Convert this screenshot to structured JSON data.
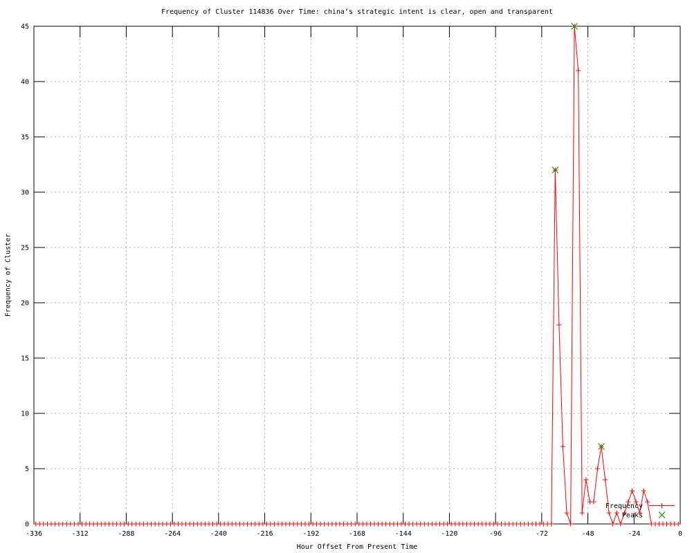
{
  "title": "Frequency of Cluster 114836 Over Time: china’s strategic intent is clear, open and transparent",
  "x_axis": {
    "label": "Hour Offset From Present Time",
    "min": -336,
    "max": 0,
    "ticks": [
      -336,
      -312,
      -288,
      -264,
      -240,
      -216,
      -192,
      -168,
      -144,
      -120,
      -96,
      -72,
      -48,
      -24,
      0
    ]
  },
  "y_axis": {
    "label": "Frequency of Cluster",
    "min": 0,
    "max": 45,
    "ticks": [
      0,
      5,
      10,
      15,
      20,
      25,
      30,
      35,
      40,
      45
    ]
  },
  "legend": {
    "position": "bottom-right",
    "entries": [
      {
        "label": "Frequency",
        "marker": "plus-line",
        "color": "#ff0000"
      },
      {
        "label": "Peaks",
        "marker": "x",
        "color": "#00a000"
      }
    ]
  },
  "colors": {
    "frequency_series": "#ff0000",
    "peaks_series": "#00a000",
    "grid": "#b0b0b0",
    "border": "#000000",
    "background": "#ffffff",
    "text": "#000000"
  },
  "chart_data": {
    "type": "line",
    "title": "Frequency of Cluster 114836 Over Time: china’s strategic intent is clear, open and transparent",
    "xlabel": "Hour Offset From Present Time",
    "ylabel": "Frequency of Cluster",
    "xlim": [
      -336,
      0
    ],
    "ylim": [
      0,
      45
    ],
    "grid": true,
    "series": [
      {
        "name": "Frequency",
        "type": "linespoints",
        "marker": "plus",
        "color": "#ff0000",
        "x_start": -335,
        "x_step": 2,
        "x_end": -1,
        "default_value": 0,
        "nonzero_points": {
          "-65": 32,
          "-63": 18,
          "-61": 7,
          "-59": 1,
          "-55": 45,
          "-53": 41,
          "-51": 1,
          "-49": 4,
          "-47": 2,
          "-45": 2,
          "-43": 5,
          "-41": 7,
          "-39": 4,
          "-37": 1,
          "-33": 1,
          "-29": 1,
          "-27": 2,
          "-25": 3,
          "-23": 2,
          "-21": 1,
          "-19": 3,
          "-17": 2
        }
      },
      {
        "name": "Peaks",
        "type": "scatter",
        "marker": "x",
        "color": "#00a000",
        "points": [
          [
            -65,
            32
          ],
          [
            -55,
            45
          ],
          [
            -41,
            7
          ]
        ]
      }
    ]
  }
}
